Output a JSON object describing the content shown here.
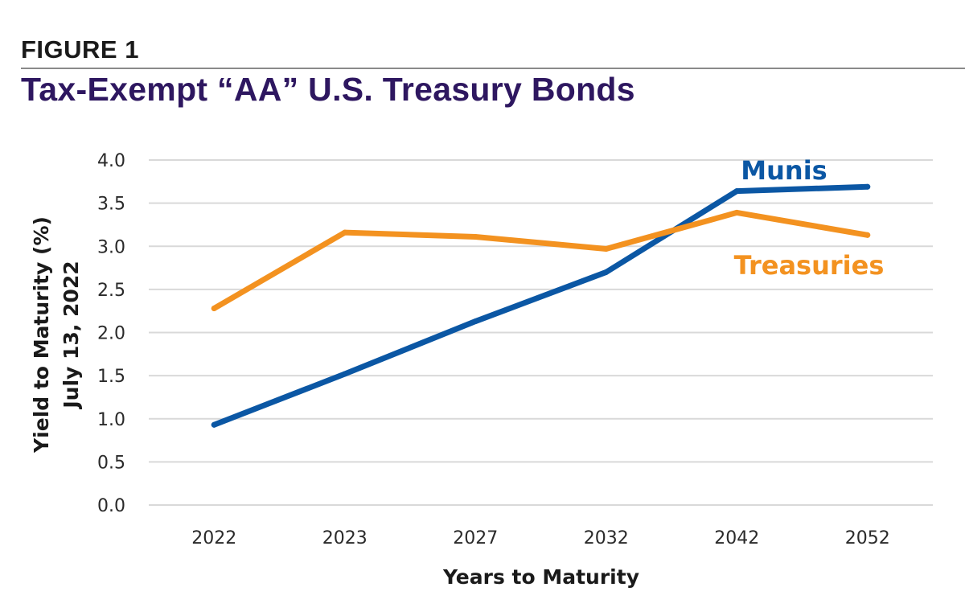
{
  "figure_label": "FIGURE 1",
  "title": "Tax-Exempt “AA” U.S. Treasury Bonds",
  "chart_data": {
    "type": "line",
    "categories": [
      "2022",
      "2023",
      "2027",
      "2032",
      "2042",
      "2052"
    ],
    "xlabel": "Years to Maturity",
    "ylabel_line1": "Yield to Maturity (%)",
    "ylabel_line2": "July 13, 2022",
    "ylim": [
      0,
      4
    ],
    "yticks": [
      "0.0",
      "0.5",
      "1.0",
      "1.5",
      "2.0",
      "2.5",
      "3.0",
      "3.5",
      "4.0"
    ],
    "grid": true,
    "series": [
      {
        "name": "Munis",
        "color": "#0b57a4",
        "values": [
          0.93,
          1.52,
          2.13,
          2.7,
          3.64,
          3.69
        ]
      },
      {
        "name": "Treasuries",
        "color": "#f39220",
        "values": [
          2.28,
          3.16,
          3.11,
          2.97,
          3.39,
          3.13
        ]
      }
    ]
  }
}
